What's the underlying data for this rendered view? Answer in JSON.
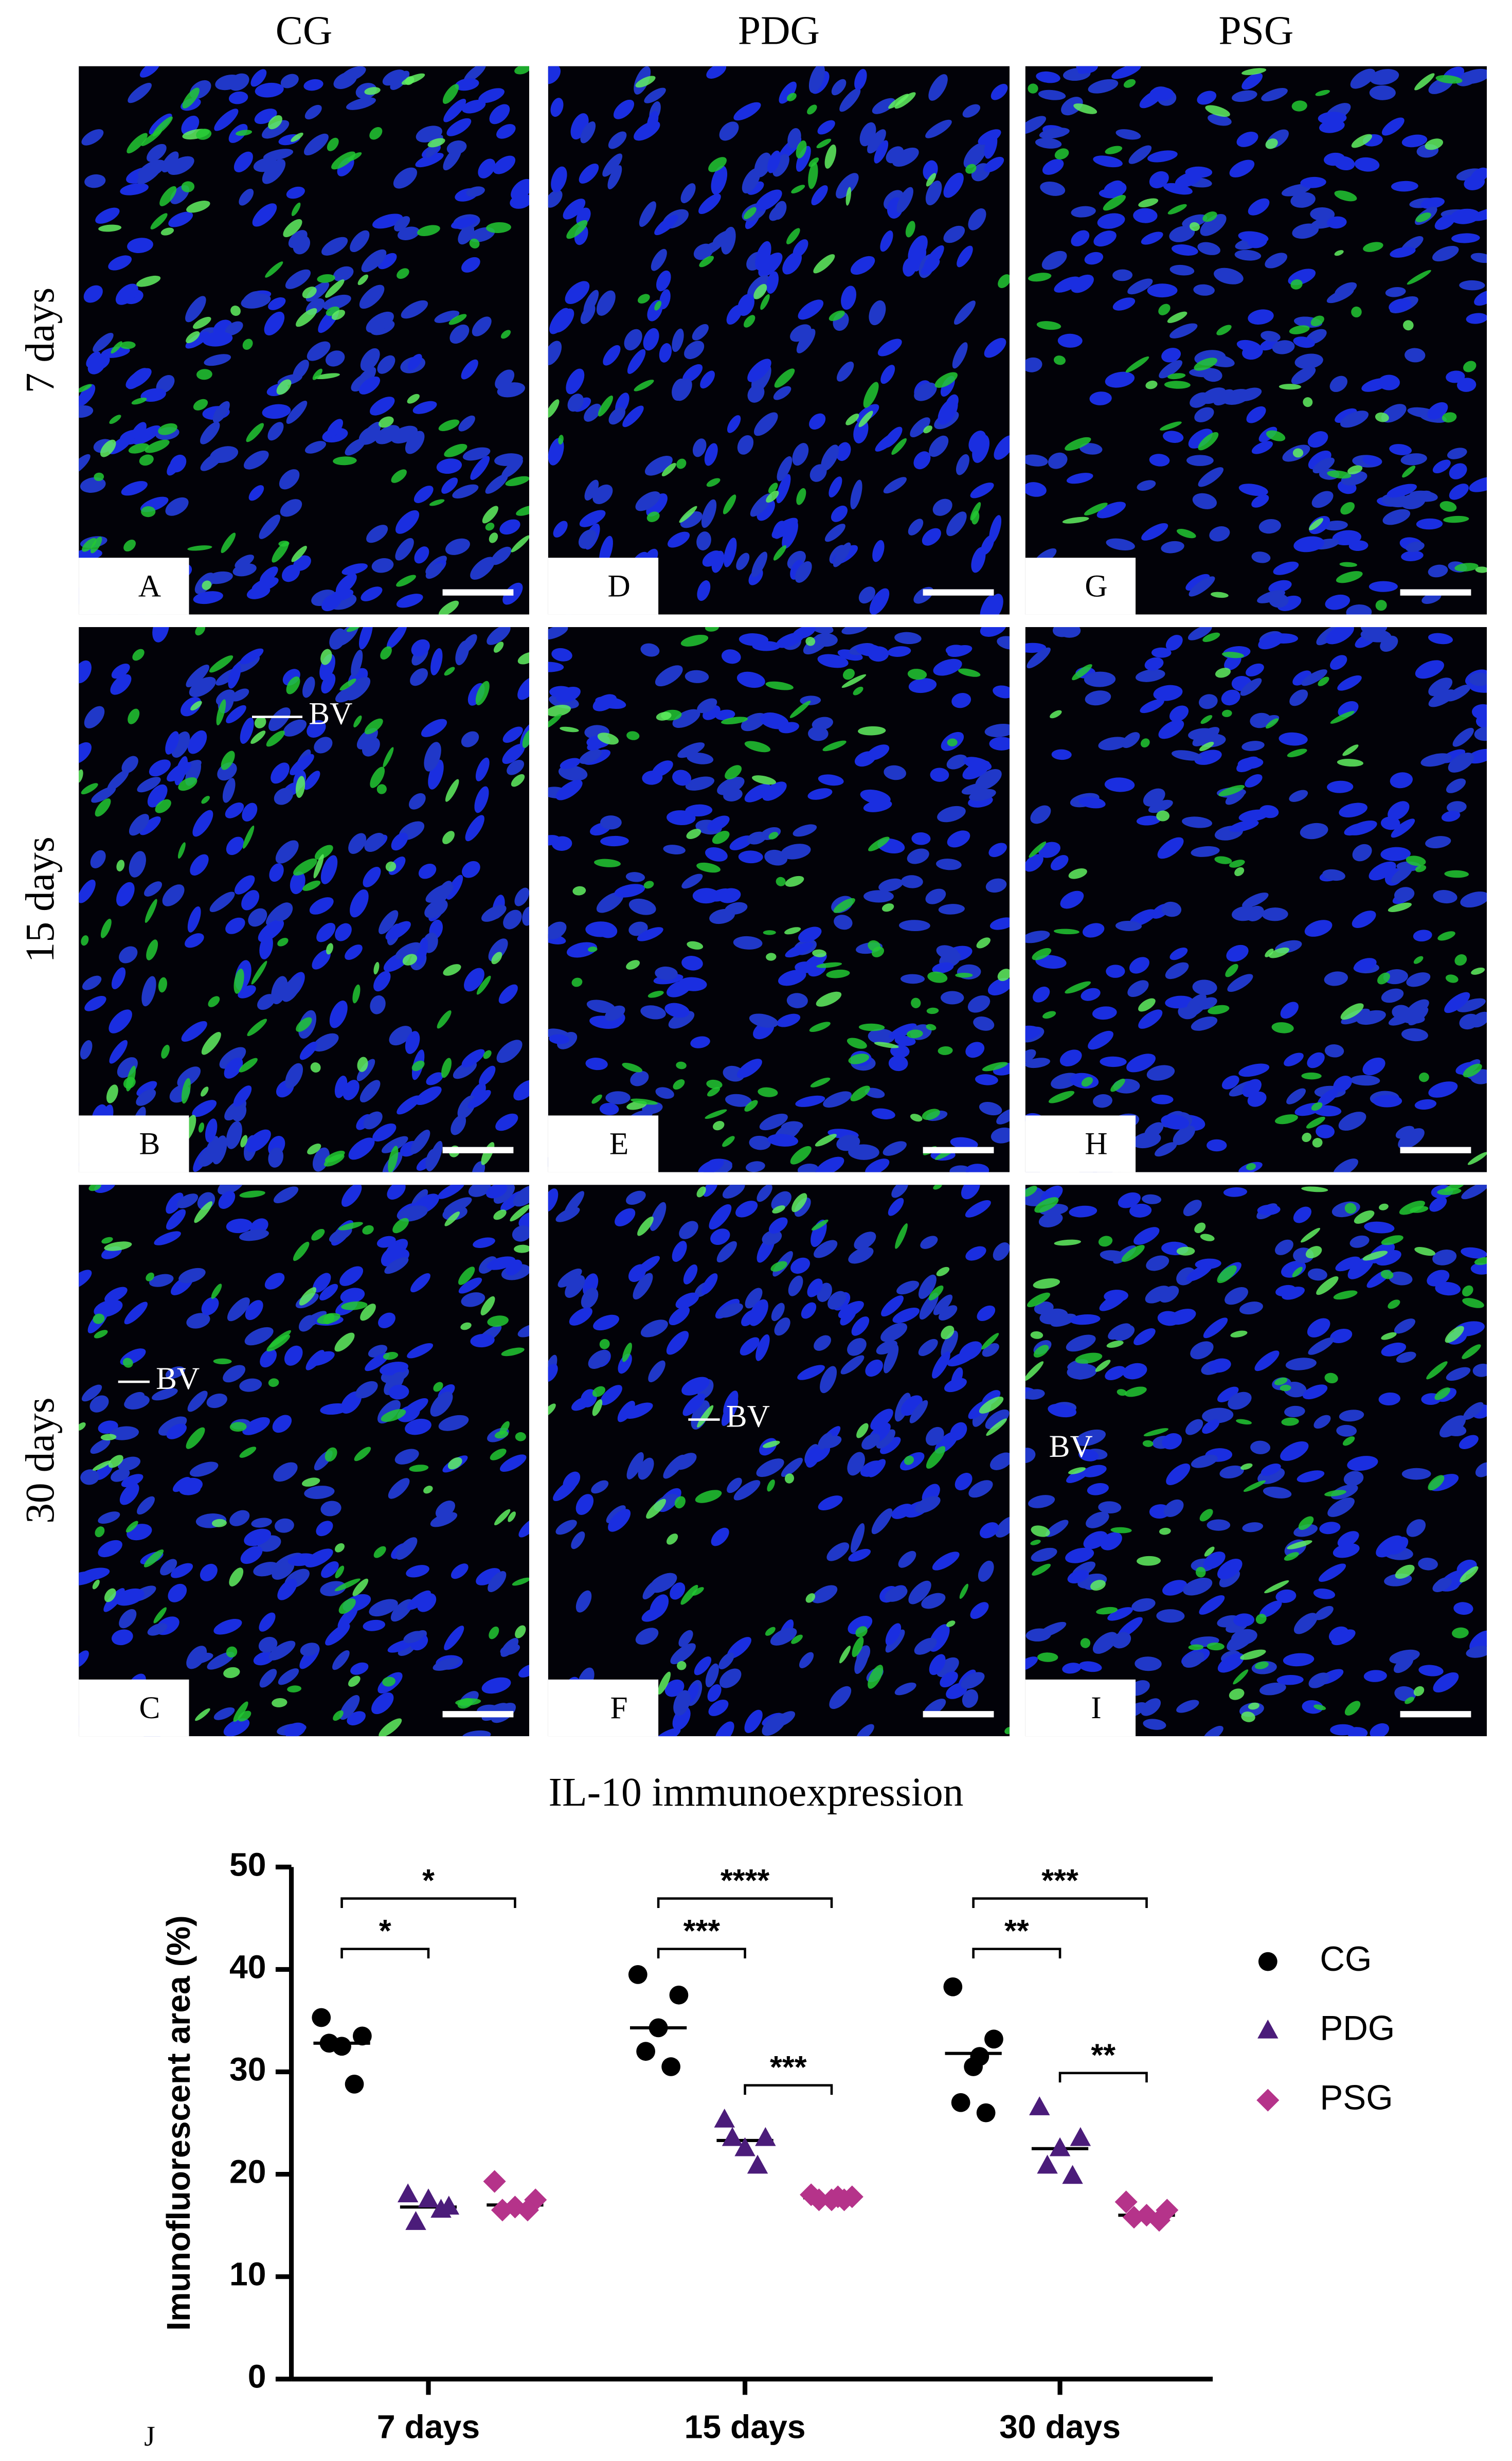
{
  "figure": {
    "columns": [
      "CG",
      "PDG",
      "PSG"
    ],
    "rows": [
      "7 days",
      "15 days",
      "30 days"
    ],
    "panels": [
      {
        "letter": "A"
      },
      {
        "letter": "B",
        "annotation": "BV"
      },
      {
        "letter": "C",
        "annotation": "BV"
      },
      {
        "letter": "D"
      },
      {
        "letter": "E"
      },
      {
        "letter": "F",
        "annotation": "BV"
      },
      {
        "letter": "G"
      },
      {
        "letter": "H"
      },
      {
        "letter": "I",
        "annotation": "BV"
      }
    ]
  },
  "chart_data": {
    "type": "scatter",
    "panel_letter": "J",
    "title": "IL-10 immunoexpression",
    "y_label": "Imunofluorescent area (%)",
    "categories": [
      "7 days",
      "15 days",
      "30 days"
    ],
    "ylim": [
      0,
      50
    ],
    "yticks": [
      0,
      10,
      20,
      30,
      40,
      50
    ],
    "series": [
      {
        "name": "CG",
        "color": "#000000",
        "marker": "circle",
        "values": [
          [
            35.3,
            33.5,
            32.5,
            32.8,
            28.8
          ],
          [
            39.5,
            37.5,
            34.3,
            32.0,
            30.5
          ],
          [
            38.3,
            33.2,
            30.5,
            27.0,
            26.0,
            31.5
          ]
        ],
        "medians": [
          32.8,
          34.3,
          31.8
        ]
      },
      {
        "name": "PDG",
        "color": "#4b1c7a",
        "marker": "triangle",
        "values": [
          [
            18.0,
            16.8,
            17.5,
            15.3,
            16.5
          ],
          [
            25.3,
            23.5,
            22.5,
            23.5,
            20.8
          ],
          [
            26.5,
            23.5,
            22.5,
            20.8,
            19.8
          ]
        ],
        "medians": [
          16.8,
          23.3,
          22.5
        ]
      },
      {
        "name": "PSG",
        "color": "#b5338a",
        "marker": "diamond",
        "values": [
          [
            19.3,
            17.5,
            16.8,
            16.5,
            16.5
          ],
          [
            18.0,
            17.8,
            17.5,
            17.5,
            17.5,
            17.8
          ],
          [
            17.3,
            16.5,
            16.0,
            15.8,
            15.5
          ]
        ],
        "medians": [
          17.0,
          17.7,
          16.0
        ]
      }
    ],
    "significance": [
      {
        "category": "7 days",
        "pair": [
          "CG",
          "PDG"
        ],
        "label": "*"
      },
      {
        "category": "7 days",
        "pair": [
          "CG",
          "PSG"
        ],
        "label": "*"
      },
      {
        "category": "15 days",
        "pair": [
          "CG",
          "PDG"
        ],
        "label": "***"
      },
      {
        "category": "15 days",
        "pair": [
          "CG",
          "PSG"
        ],
        "label": "****"
      },
      {
        "category": "15 days",
        "pair": [
          "PDG",
          "PSG"
        ],
        "label": "***"
      },
      {
        "category": "30 days",
        "pair": [
          "CG",
          "PDG"
        ],
        "label": "**"
      },
      {
        "category": "30 days",
        "pair": [
          "CG",
          "PSG"
        ],
        "label": "***"
      },
      {
        "category": "30 days",
        "pair": [
          "PDG",
          "PSG"
        ],
        "label": "**"
      }
    ]
  }
}
